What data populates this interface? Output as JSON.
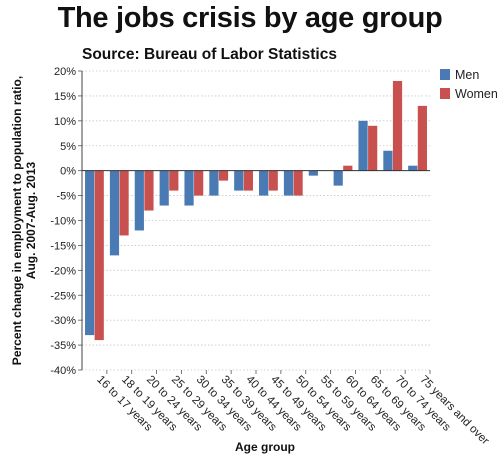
{
  "chart_data": {
    "type": "bar",
    "title": "The jobs crisis by age group",
    "subtitle": "Source: Bureau of Labor Statistics",
    "xlabel": "Age group",
    "ylabel_lines": [
      "Percent change in employment to population ratio,",
      "Aug. 2007-Aug. 2013"
    ],
    "ylim": [
      -40,
      20
    ],
    "yticks": [
      20,
      15,
      10,
      5,
      0,
      -5,
      -10,
      -15,
      -20,
      -25,
      -30,
      -35,
      -40
    ],
    "ytick_labels": [
      "20%",
      "15%",
      "10%",
      "5%",
      "0%",
      "-5%",
      "-10%",
      "-15%",
      "-20%",
      "-25%",
      "-30%",
      "-35%",
      "-40%"
    ],
    "grid": true,
    "legend_position": "top-right",
    "categories": [
      "16 to 17 years",
      "18 to 19 years",
      "20 to 24 years",
      "25 to 29 years",
      "30 to 34 years",
      "35 to 39 years",
      "40 to 44 years",
      "45 to 49 years",
      "50 to 54 years",
      "55 to 59 years",
      "60 to 64 years",
      "65 to 69 years",
      "70 to 74 years",
      "75 years and over"
    ],
    "series": [
      {
        "name": "Men",
        "color": "#4a7ab4",
        "values": [
          -33,
          -17,
          -12,
          -7,
          -7,
          -5,
          -4,
          -5,
          -5,
          -1,
          -3,
          10,
          4,
          1
        ]
      },
      {
        "name": "Women",
        "color": "#c8514f",
        "values": [
          -34,
          -13,
          -8,
          -4,
          -5,
          -2,
          -4,
          -4,
          -5,
          0,
          1,
          9,
          18,
          13
        ]
      }
    ]
  }
}
